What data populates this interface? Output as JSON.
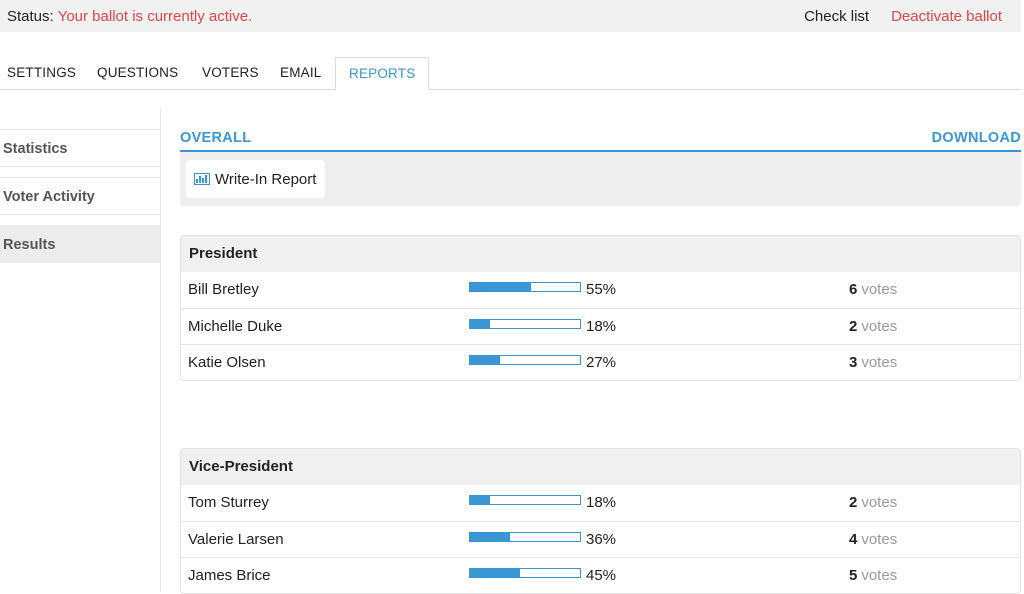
{
  "status": {
    "label": "Status:",
    "text": "Your ballot is currently active.",
    "checklist": "Check list",
    "deactivate": "Deactivate ballot"
  },
  "tabs": [
    {
      "label": "SETTINGS"
    },
    {
      "label": "QUESTIONS"
    },
    {
      "label": "VOTERS"
    },
    {
      "label": "EMAIL"
    },
    {
      "label": "REPORTS",
      "active": true
    }
  ],
  "sidebar": {
    "items": [
      {
        "label": "Statistics"
      },
      {
        "label": "Voter Activity"
      },
      {
        "label": "Results",
        "active": true
      }
    ]
  },
  "report": {
    "overall": "OVERALL",
    "download": "DOWNLOAD",
    "writein": "Write-In Report",
    "writein_icon": "bar-chart-icon"
  },
  "questions": [
    {
      "title": "President",
      "candidates": [
        {
          "name": "Bill Bretley",
          "percent": 55,
          "percent_label": "55%",
          "votes": "6",
          "votes_label": "votes"
        },
        {
          "name": "Michelle Duke",
          "percent": 18,
          "percent_label": "18%",
          "votes": "2",
          "votes_label": "votes"
        },
        {
          "name": "Katie Olsen",
          "percent": 27,
          "percent_label": "27%",
          "votes": "3",
          "votes_label": "votes"
        }
      ]
    },
    {
      "title": "Vice-President",
      "candidates": [
        {
          "name": "Tom Sturrey",
          "percent": 18,
          "percent_label": "18%",
          "votes": "2",
          "votes_label": "votes"
        },
        {
          "name": "Valerie Larsen",
          "percent": 36,
          "percent_label": "36%",
          "votes": "4",
          "votes_label": "votes"
        },
        {
          "name": "James Brice",
          "percent": 45,
          "percent_label": "45%",
          "votes": "5",
          "votes_label": "votes"
        }
      ]
    }
  ],
  "colors": {
    "accent": "#3a97d4",
    "alert": "#e0464a"
  }
}
